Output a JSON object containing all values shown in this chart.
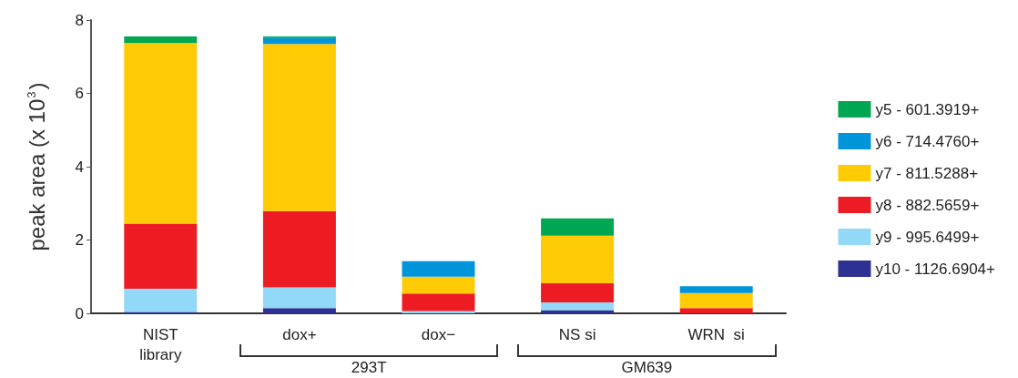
{
  "chart_data": {
    "type": "bar",
    "stacked": true,
    "ylabel": "peak area (x 10$^{3}$)",
    "categories": [
      "NIST\nlibrary",
      "dox+",
      "dox−",
      "NS si",
      "WRN  si"
    ],
    "series": [
      {
        "name": "y10 - 1126.6904+",
        "color": "#2e3192",
        "values": [
          0.04,
          0.14,
          0,
          0.09,
          0
        ]
      },
      {
        "name": "y9 - 995.6499+",
        "color": "#92d9f7",
        "values": [
          0.63,
          0.57,
          0.06,
          0.21,
          0
        ]
      },
      {
        "name": "y8 - 882.5659+",
        "color": "#ed1c24",
        "values": [
          1.78,
          2.08,
          0.48,
          0.52,
          0.14
        ]
      },
      {
        "name": "y7 - 811.5288+",
        "color": "#ffcb05",
        "values": [
          4.92,
          4.56,
          0.46,
          1.3,
          0.41
        ]
      },
      {
        "name": "y6 - 714.4760+",
        "color": "#0095da",
        "values": [
          0,
          0.16,
          0.42,
          0,
          0.19
        ]
      },
      {
        "name": "y5 - 601.3919+",
        "color": "#00a651",
        "values": [
          0.18,
          0.04,
          0,
          0.47,
          0
        ]
      }
    ],
    "annotations": [
      "293T",
      "GM639"
    ],
    "ylim": [
      0,
      8
    ],
    "yticks": [
      0,
      2,
      4,
      6,
      8
    ],
    "grid": false,
    "legend": "right"
  }
}
